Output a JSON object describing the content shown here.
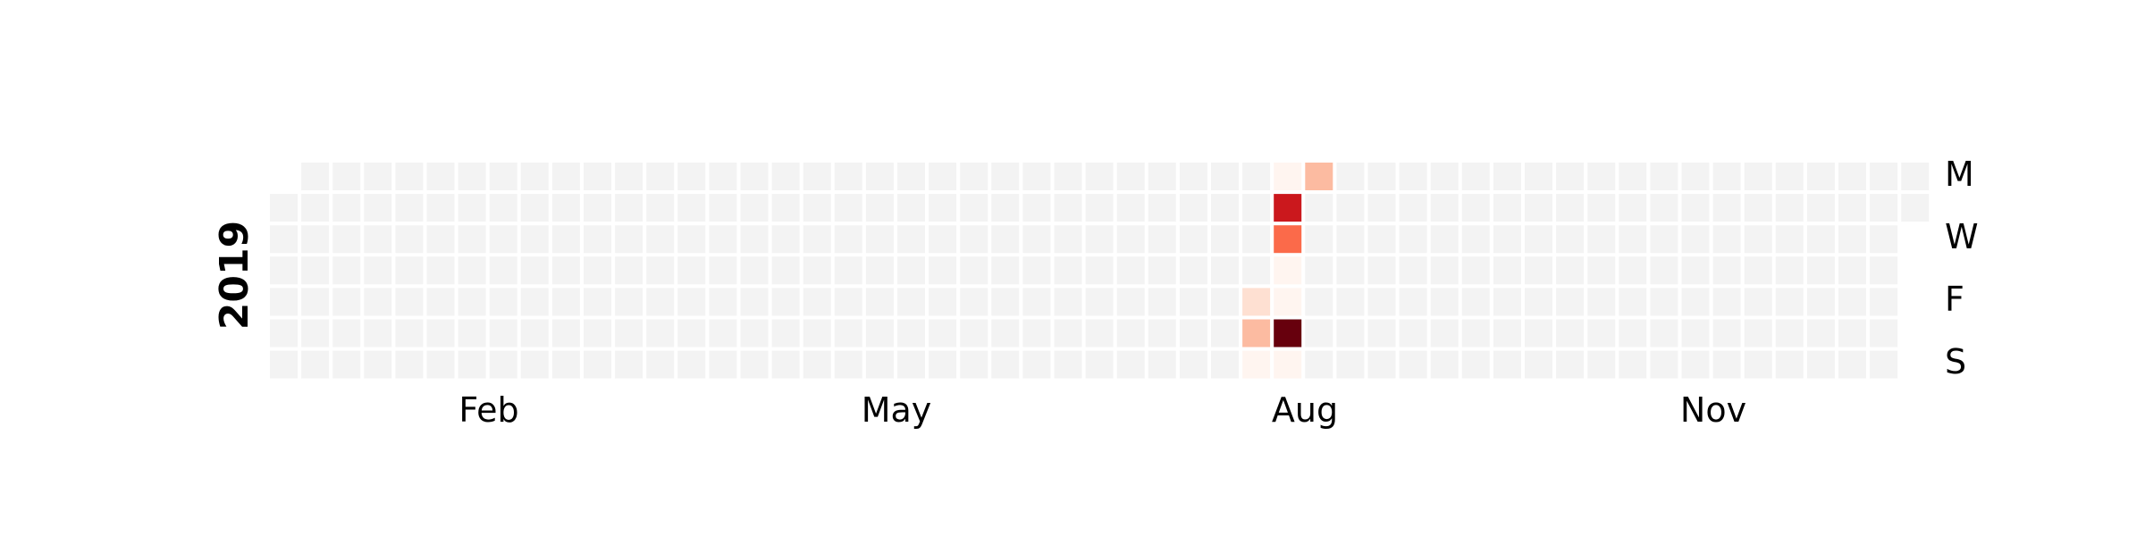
{
  "chart_data": {
    "type": "heatmap",
    "year": "2019",
    "month_labels": [
      "Feb",
      "May",
      "Aug",
      "Nov"
    ],
    "day_labels": [
      "M",
      "W",
      "F",
      "S"
    ],
    "colors": {
      "empty": "#f3f3f3",
      "scale": [
        "#fff5f0",
        "#fee0d2",
        "#fcbba1",
        "#fc9272",
        "#fb6a4a",
        "#ef3b2c",
        "#cb181d",
        "#a50f15",
        "#67000d"
      ]
    },
    "values": [
      {
        "date": "2019-08-09",
        "level": 1
      },
      {
        "date": "2019-08-10",
        "level": 2
      },
      {
        "date": "2019-08-11",
        "level": 0
      },
      {
        "date": "2019-08-12",
        "level": 0
      },
      {
        "date": "2019-08-13",
        "level": 6
      },
      {
        "date": "2019-08-14",
        "level": 4
      },
      {
        "date": "2019-08-15",
        "level": 0
      },
      {
        "date": "2019-08-16",
        "level": 0
      },
      {
        "date": "2019-08-17",
        "level": 8
      },
      {
        "date": "2019-08-18",
        "level": 0
      },
      {
        "date": "2019-08-19",
        "level": 2
      }
    ]
  }
}
